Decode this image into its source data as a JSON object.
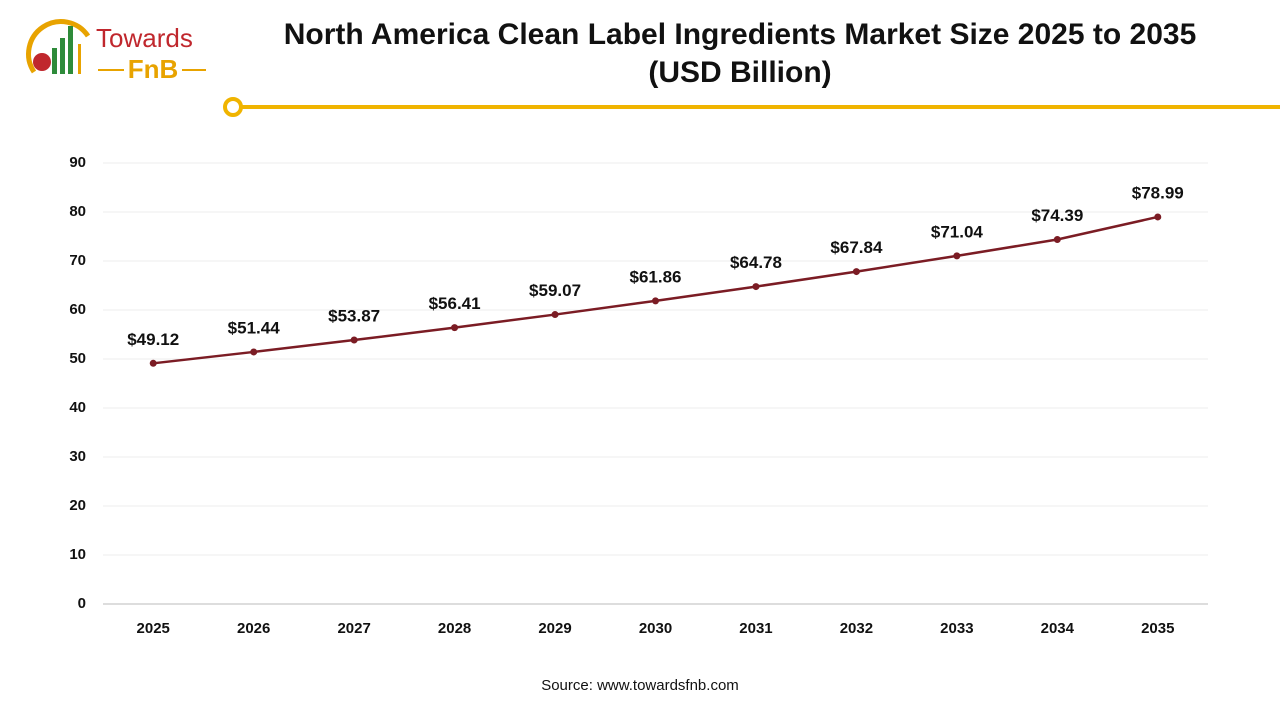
{
  "logo": {
    "line1": "Towards",
    "line2": "FnB"
  },
  "chart_data": {
    "type": "line",
    "title": "North America Clean Label Ingredients Market Size 2025 to 2035 (USD Billion)",
    "categories": [
      "2025",
      "2026",
      "2027",
      "2028",
      "2029",
      "2030",
      "2031",
      "2032",
      "2033",
      "2034",
      "2035"
    ],
    "values": [
      49.12,
      51.44,
      53.87,
      56.41,
      59.07,
      61.86,
      64.78,
      67.84,
      71.04,
      74.39,
      78.99
    ],
    "value_labels": [
      "$49.12",
      "$51.44",
      "$53.87",
      "$56.41",
      "$59.07",
      "$61.86",
      "$64.78",
      "$67.84",
      "$71.04",
      "$74.39",
      "$78.99"
    ],
    "color": "#7b1c24",
    "ylim": [
      0,
      90
    ],
    "yticks": [
      0,
      10,
      20,
      30,
      40,
      50,
      60,
      70,
      80,
      90
    ],
    "grid": true,
    "source": "Source: www.towardsfnb.com"
  }
}
